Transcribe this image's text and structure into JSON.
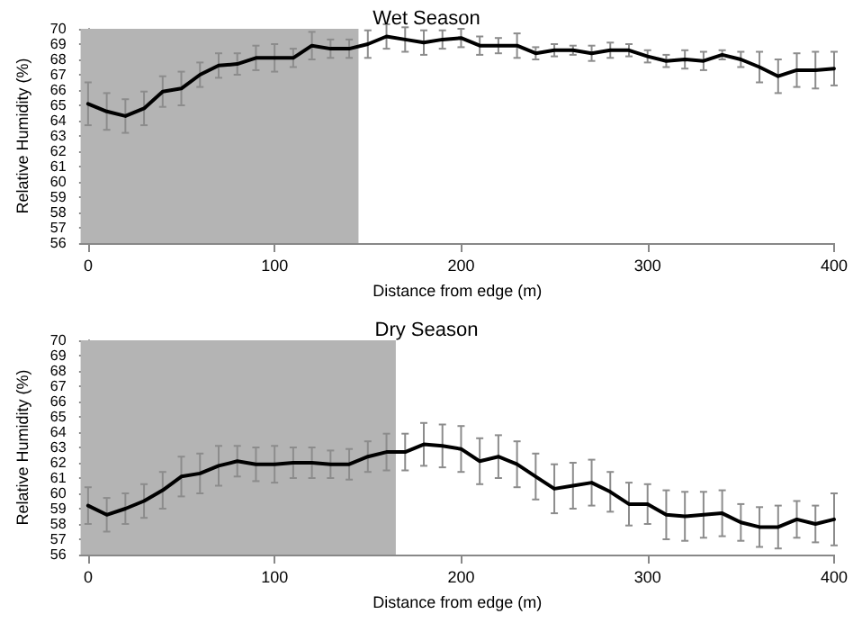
{
  "chart_data": [
    {
      "type": "line",
      "title": "Wet Season",
      "xlabel": "Distance from edge (m)",
      "ylabel": "Relative Humidity (%)",
      "xlim": [
        -4,
        400
      ],
      "xticks": [
        0,
        100,
        200,
        300,
        400
      ],
      "ylim": [
        56,
        70
      ],
      "yticks": [
        56,
        57,
        58,
        59,
        60,
        61,
        62,
        63,
        64,
        65,
        66,
        67,
        68,
        69,
        70
      ],
      "x": [
        0,
        10,
        20,
        30,
        40,
        50,
        60,
        70,
        80,
        90,
        100,
        110,
        120,
        130,
        140,
        150,
        160,
        170,
        180,
        190,
        200,
        210,
        220,
        230,
        240,
        250,
        260,
        270,
        280,
        290,
        300,
        310,
        320,
        330,
        340,
        350,
        360,
        370,
        380,
        390,
        400
      ],
      "bands": [
        {
          "axis": "x",
          "from": -4,
          "to": 145,
          "color": "#b4b4b4"
        }
      ],
      "series": [
        {
          "color": "#000000",
          "values": [
            65.1,
            64.6,
            64.3,
            64.8,
            65.9,
            66.1,
            67.0,
            67.6,
            67.7,
            68.1,
            68.1,
            68.1,
            68.9,
            68.7,
            68.7,
            69.0,
            69.5,
            69.3,
            69.1,
            69.3,
            69.4,
            68.9,
            68.9,
            68.9,
            68.4,
            68.6,
            68.6,
            68.4,
            68.6,
            68.6,
            68.2,
            67.9,
            68.0,
            67.9,
            68.3,
            68.0,
            67.5,
            66.9,
            67.3,
            67.3,
            67.4
          ],
          "errors": [
            1.4,
            1.2,
            1.1,
            1.1,
            1.0,
            1.1,
            0.8,
            0.8,
            0.7,
            0.8,
            0.9,
            0.6,
            0.9,
            0.6,
            0.6,
            0.9,
            0.8,
            0.8,
            0.8,
            0.6,
            0.6,
            0.6,
            0.5,
            0.8,
            0.4,
            0.4,
            0.3,
            0.5,
            0.5,
            0.4,
            0.4,
            0.4,
            0.6,
            0.6,
            0.3,
            0.5,
            1.0,
            1.1,
            1.1,
            1.2,
            1.1
          ]
        }
      ]
    },
    {
      "type": "line",
      "title": "Dry Season",
      "xlabel": "Distance from edge (m)",
      "ylabel": "Relative Humidity (%)",
      "xlim": [
        -4,
        400
      ],
      "xticks": [
        0,
        100,
        200,
        300,
        400
      ],
      "ylim": [
        56,
        70
      ],
      "yticks": [
        56,
        57,
        58,
        59,
        60,
        61,
        62,
        63,
        64,
        65,
        66,
        67,
        68,
        69,
        70
      ],
      "x": [
        0,
        10,
        20,
        30,
        40,
        50,
        60,
        70,
        80,
        90,
        100,
        110,
        120,
        130,
        140,
        150,
        160,
        170,
        180,
        190,
        200,
        210,
        220,
        230,
        240,
        250,
        260,
        270,
        280,
        290,
        300,
        310,
        320,
        330,
        340,
        350,
        360,
        370,
        380,
        390,
        400
      ],
      "bands": [
        {
          "axis": "x",
          "from": -4,
          "to": 165,
          "color": "#b4b4b4"
        }
      ],
      "series": [
        {
          "color": "#000000",
          "values": [
            59.2,
            58.6,
            59.0,
            59.5,
            60.2,
            61.1,
            61.3,
            61.8,
            62.1,
            61.9,
            61.9,
            62.0,
            62.0,
            61.9,
            61.9,
            62.4,
            62.7,
            62.7,
            63.2,
            63.1,
            62.9,
            62.1,
            62.4,
            61.9,
            61.1,
            60.3,
            60.5,
            60.7,
            60.1,
            59.3,
            59.3,
            58.6,
            58.5,
            58.6,
            58.7,
            58.1,
            57.8,
            57.8,
            58.3,
            58.0,
            58.3
          ],
          "errors": [
            1.2,
            1.1,
            1.0,
            1.1,
            1.2,
            1.3,
            1.3,
            1.3,
            1.0,
            1.1,
            1.2,
            1.0,
            1.0,
            0.9,
            1.0,
            1.0,
            1.2,
            1.2,
            1.4,
            1.4,
            1.5,
            1.5,
            1.4,
            1.5,
            1.5,
            1.6,
            1.5,
            1.5,
            1.3,
            1.4,
            1.3,
            1.6,
            1.6,
            1.5,
            1.5,
            1.2,
            1.3,
            1.4,
            1.2,
            1.2,
            1.7
          ]
        }
      ]
    }
  ]
}
